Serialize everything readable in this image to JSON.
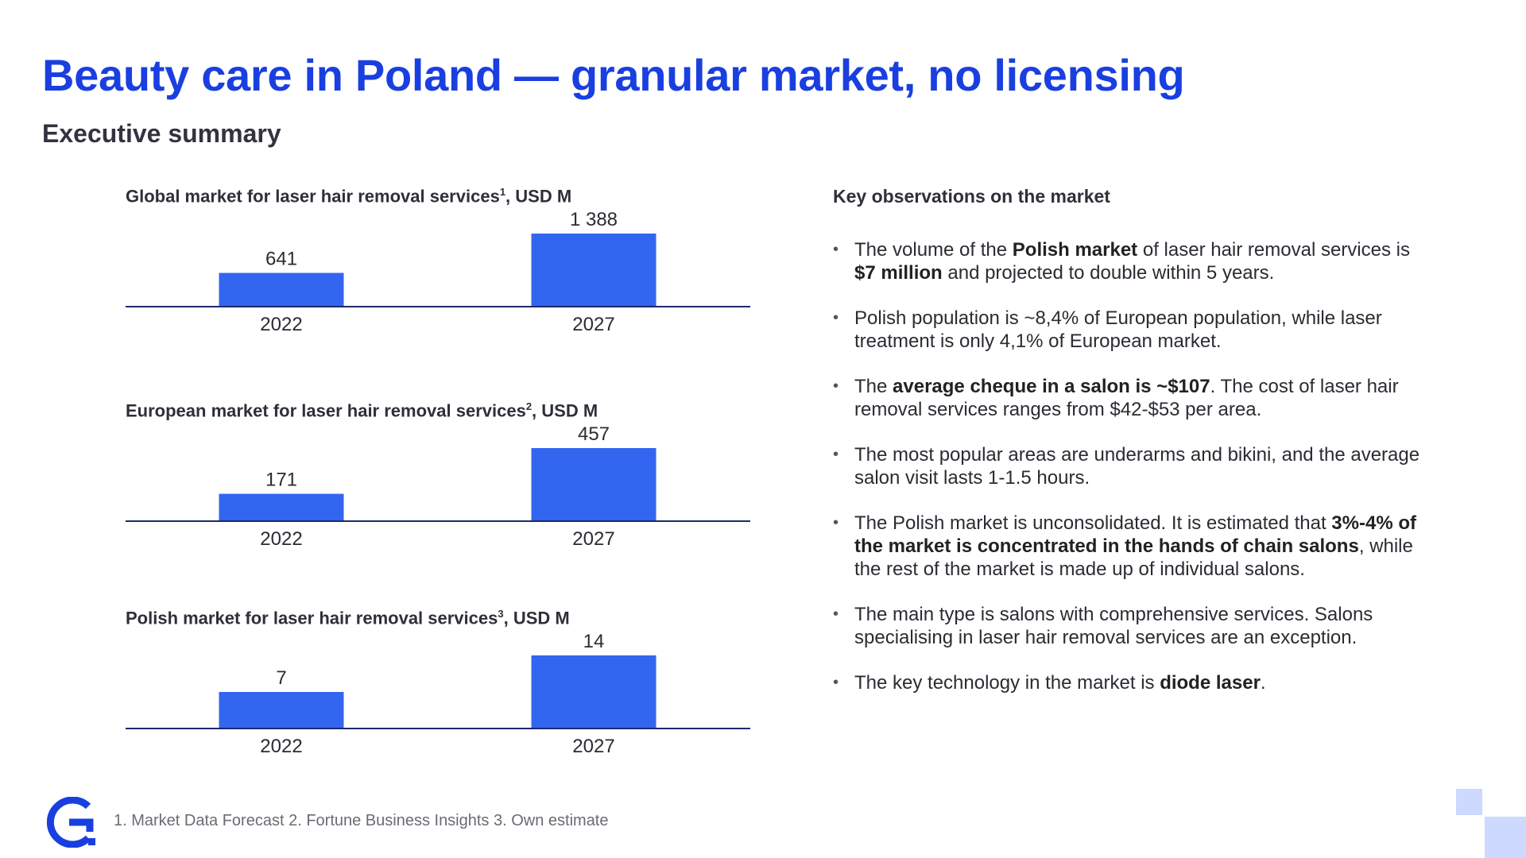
{
  "title": "Beauty care in Poland — granular market, no licensing",
  "subtitle": "Executive summary",
  "chart_data": [
    {
      "type": "bar",
      "title": "Global market for laser hair removal services",
      "title_sup": "1",
      "title_suffix": ", USD M",
      "categories": [
        "2022",
        "2027"
      ],
      "values": [
        641,
        1388
      ],
      "value_labels": [
        "641",
        "1 388"
      ],
      "color": "#3366f0"
    },
    {
      "type": "bar",
      "title": "European market for laser hair removal services",
      "title_sup": "2",
      "title_suffix": ", USD M",
      "categories": [
        "2022",
        "2027"
      ],
      "values": [
        171,
        457
      ],
      "value_labels": [
        "171",
        "457"
      ],
      "color": "#3366f0"
    },
    {
      "type": "bar",
      "title": "Polish market for laser hair removal services",
      "title_sup": "3",
      "title_suffix": ", USD M",
      "categories": [
        "2022",
        "2027"
      ],
      "values": [
        7,
        14
      ],
      "value_labels": [
        "7",
        "14"
      ],
      "color": "#3366f0"
    }
  ],
  "observations": {
    "title": "Key observations on the market",
    "items": [
      [
        {
          "t": "The volume of the "
        },
        {
          "t": "Polish market",
          "b": true
        },
        {
          "t": " of laser hair removal services is "
        },
        {
          "t": "$7 million",
          "b": true
        },
        {
          "t": " and projected to double within 5 years."
        }
      ],
      [
        {
          "t": "Polish population is ~8,4% of European population, while laser treatment is only 4,1% of European market."
        }
      ],
      [
        {
          "t": "The "
        },
        {
          "t": "average cheque in a salon is ~$107",
          "b": true
        },
        {
          "t": ". The cost of laser hair removal services ranges from $42-$53 per area."
        }
      ],
      [
        {
          "t": "The most popular areas are underarms and bikini, and the average salon visit lasts 1-1.5 hours."
        }
      ],
      [
        {
          "t": "The Polish market is unconsolidated. It is estimated that "
        },
        {
          "t": "3%-4% of the market is concentrated in the hands of chain salons",
          "b": true
        },
        {
          "t": ", while the rest of the market is made up of individual salons."
        }
      ],
      [
        {
          "t": "The main type is salons with comprehensive services. Salons specialising in laser hair removal services are an exception."
        }
      ],
      [
        {
          "t": "The key technology in the market is "
        },
        {
          "t": "diode laser",
          "b": true
        },
        {
          "t": "."
        }
      ]
    ]
  },
  "footnote": "1. Market Data Forecast 2. Fortune Business Insights 3. Own estimate",
  "logo_icon": "g-logo-icon",
  "accent_color": "#1a3fe0"
}
